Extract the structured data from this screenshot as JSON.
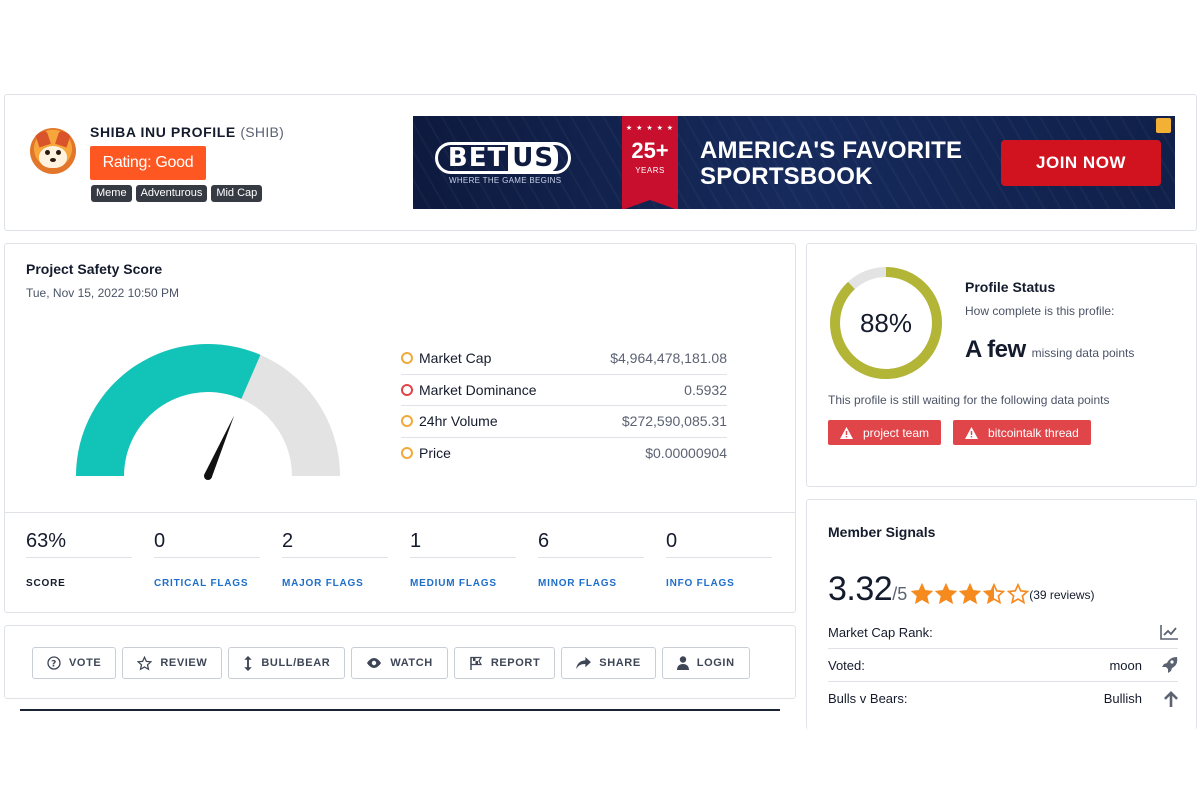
{
  "profile": {
    "title": "SHIBA INU PROFILE",
    "ticker": "(SHIB)",
    "rating": "Rating: Good",
    "tags": [
      "Meme",
      "Adventurous",
      "Mid Cap"
    ]
  },
  "banner": {
    "brand": "BET",
    "brand_us": "US",
    "tagline": "WHERE THE GAME BEGINS",
    "anniversary": "25+",
    "anniversary_label": "YEARS",
    "headline_line1": "AMERICA'S FAVORITE",
    "headline_line2": "SPORTSBOOK",
    "cta": "JOIN NOW"
  },
  "safety": {
    "title": "Project Safety Score",
    "date": "Tue, Nov 15, 2022 10:50 PM",
    "gauge_fraction": 0.63,
    "metrics": [
      {
        "label": "Market Cap",
        "value": "$4,964,478,181.08",
        "dot": "#f2a93b"
      },
      {
        "label": "Market Dominance",
        "value": "0.5932",
        "dot": "#e0454a"
      },
      {
        "label": "24hr Volume",
        "value": "$272,590,085.31",
        "dot": "#f2a93b"
      },
      {
        "label": "Price",
        "value": "$0.00000904",
        "dot": "#f2a93b"
      }
    ],
    "stats": [
      {
        "value": "63%",
        "label": "SCORE"
      },
      {
        "value": "0",
        "label": "CRITICAL FLAGS"
      },
      {
        "value": "2",
        "label": "MAJOR FLAGS"
      },
      {
        "value": "1",
        "label": "MEDIUM FLAGS"
      },
      {
        "value": "6",
        "label": "MINOR FLAGS"
      },
      {
        "value": "0",
        "label": "INFO FLAGS"
      }
    ]
  },
  "actions": {
    "vote": "VOTE",
    "review": "REVIEW",
    "bullbear": "BULL/BEAR",
    "watch": "WATCH",
    "report": "REPORT",
    "share": "SHARE",
    "login": "LOGIN"
  },
  "status": {
    "percent": "88%",
    "percent_value": 0.88,
    "title": "Profile Status",
    "subtitle": "How complete is this profile:",
    "missing_big": "A few",
    "missing_small": "missing data points",
    "waiting": "This profile is still waiting for the following data points",
    "missing": [
      "project team",
      "bitcointalk thread"
    ]
  },
  "signals": {
    "title": "Member Signals",
    "score": "3.32",
    "outof": "/5",
    "stars_value": 3.5,
    "reviews": "(39 reviews)",
    "rows": [
      {
        "label": "Market Cap Rank:",
        "value": "",
        "icon": "chart-icon"
      },
      {
        "label": "Voted:",
        "value": "moon",
        "icon": "rocket-icon"
      },
      {
        "label": "Bulls v Bears:",
        "value": "Bullish",
        "icon": "arrow-up-icon"
      }
    ]
  },
  "colors": {
    "accent_orange": "#ff5722",
    "gauge_fill": "#12c4b8",
    "gauge_track": "#e3e3e3",
    "donut_fill": "#b3b537",
    "flag_red": "#e0454a",
    "link_blue": "#1e6fc9",
    "star": "#f58a1f"
  }
}
